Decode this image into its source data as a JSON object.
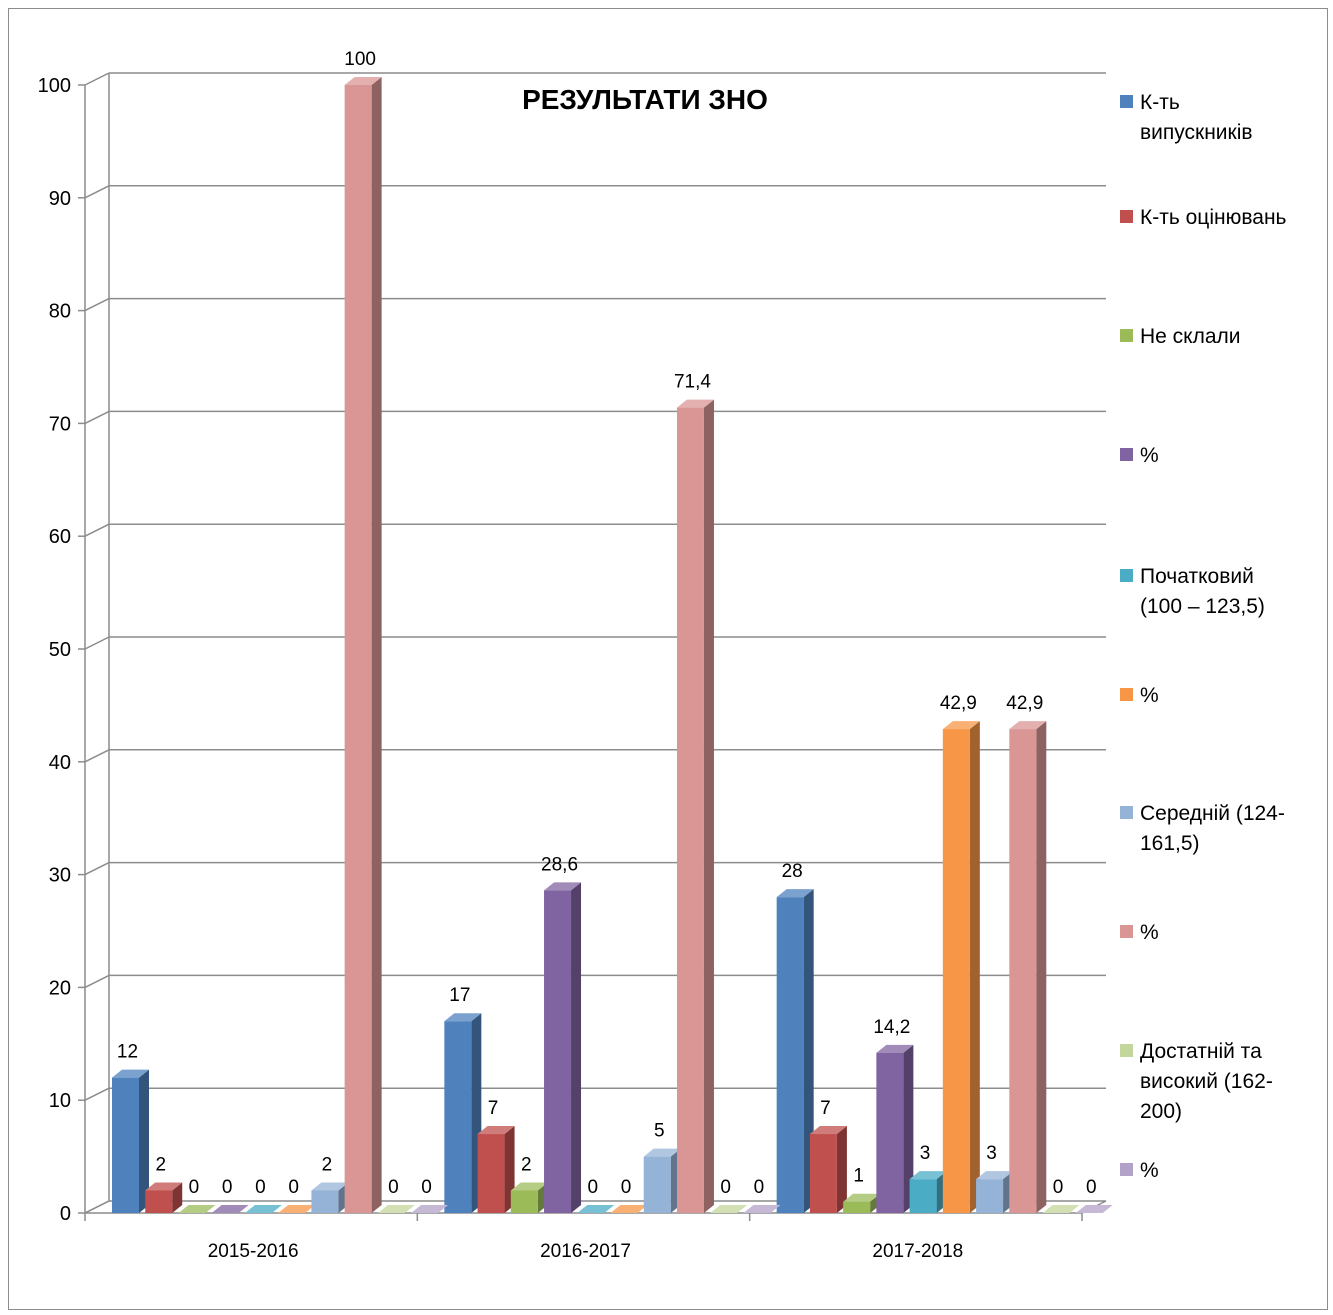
{
  "chart_data": {
    "type": "bar",
    "title": "РЕЗУЛЬТАТИ ЗНО",
    "categories": [
      "2015-2016",
      "2016-2017",
      "2017-2018"
    ],
    "yaxis": {
      "min": 0,
      "max": 100,
      "step": 10,
      "ticks": [
        "0",
        "10",
        "20",
        "30",
        "40",
        "50",
        "60",
        "70",
        "80",
        "90",
        "100"
      ]
    },
    "grid": true,
    "legend_position": "right",
    "series": [
      {
        "name": "К-ть випускників",
        "color": "#4F81BD",
        "values": [
          12,
          17,
          28
        ],
        "labels": [
          "12",
          "17",
          "28"
        ]
      },
      {
        "name": "К-ть оцінювань",
        "color": "#C0504D",
        "values": [
          2,
          7,
          7
        ],
        "labels": [
          "2",
          "7",
          "7"
        ]
      },
      {
        "name": "Не склали",
        "color": "#9BBB59",
        "values": [
          0,
          2,
          1
        ],
        "labels": [
          "0",
          "2",
          "1"
        ]
      },
      {
        "name": "%",
        "color": "#8064A2",
        "values": [
          0,
          28.6,
          14.2
        ],
        "labels": [
          "0",
          "28,6",
          "14,2"
        ]
      },
      {
        "name": "Початковий (100 – 123,5)",
        "color": "#4BACC6",
        "values": [
          0,
          0,
          3
        ],
        "labels": [
          "0",
          "0",
          "3"
        ]
      },
      {
        "name": " %",
        "color": "#F79646",
        "values": [
          0,
          0,
          42.9
        ],
        "labels": [
          "0",
          "0",
          "42,9"
        ]
      },
      {
        "name": "Середній (124-161,5)",
        "color": "#95B3D7",
        "values": [
          2,
          5,
          3
        ],
        "labels": [
          "2",
          "5",
          "3"
        ]
      },
      {
        "name": " %",
        "color": "#D99694",
        "values": [
          100,
          71.4,
          42.9
        ],
        "labels": [
          "100",
          "71,4",
          "42,9"
        ]
      },
      {
        "name": "Достатній та високий (162-200)",
        "color": "#C3D69B",
        "values": [
          0,
          0,
          0
        ],
        "labels": [
          "0",
          "0",
          "0"
        ]
      },
      {
        "name": " %",
        "color": "#B3A2C7",
        "values": [
          0,
          0,
          0
        ],
        "labels": [
          "0",
          "0",
          "0"
        ]
      }
    ]
  },
  "legend": {
    "items": [
      {
        "text": "К-ть\nвипускників",
        "color": "#4F81BD"
      },
      {
        "text": "К-ть оцінювань",
        "color": "#C0504D"
      },
      {
        "text": "Не склали",
        "color": "#9BBB59"
      },
      {
        "text": "%",
        "color": "#8064A2"
      },
      {
        "text": "Початковий\n(100 – 123,5)",
        "color": "#4BACC6"
      },
      {
        "text": " %",
        "color": "#F79646"
      },
      {
        "text": "Середній (124-\n161,5)",
        "color": "#95B3D7"
      },
      {
        "text": " %",
        "color": "#D99694"
      },
      {
        "text": "Достатній та\nвисокий (162-\n200)",
        "color": "#C3D69B"
      },
      {
        "text": " %",
        "color": "#B3A2C7"
      }
    ]
  }
}
